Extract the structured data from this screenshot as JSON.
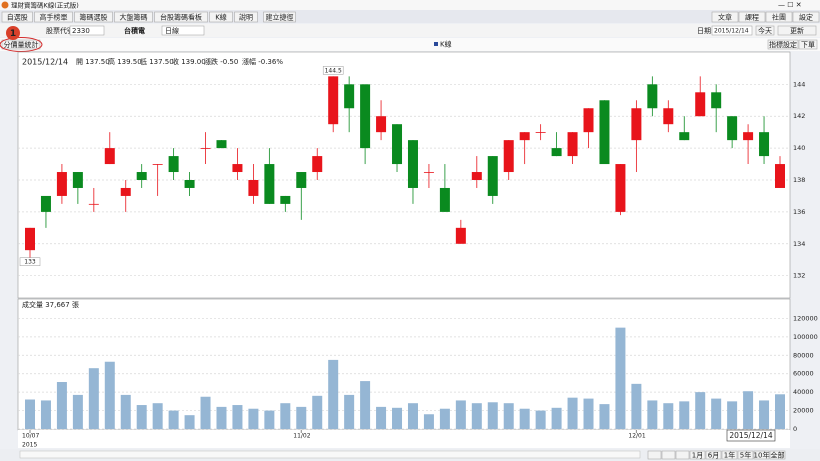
{
  "window_title": "理財寶籌碼K線(正式版)",
  "menu": {
    "tabs": [
      "自選股",
      "高手榜單",
      "籌碼選股",
      "大盤籌碼",
      "台股籌碼看板",
      "K線",
      "說明"
    ],
    "shortcut": "建立捷徑",
    "right": [
      "文章",
      "課程",
      "社團",
      "設定"
    ]
  },
  "toolbar": {
    "code_label": "股票代號",
    "code": "2330",
    "name": "台積電",
    "period": "日線",
    "date_label": "日期:",
    "date": "2015/12/14",
    "today": "今天",
    "refresh": "更新"
  },
  "subbar": {
    "left": "分價量統計",
    "right": [
      "指標設定",
      "下單"
    ]
  },
  "callout": "1",
  "range_buttons": [
    "1月",
    "6月",
    "1年",
    "5年",
    "10年",
    "全部"
  ],
  "chart_data": [
    {
      "type": "candlestick",
      "legend": "K線",
      "date": "2015/12/14",
      "quote": [
        "開 137.50",
        "高 139.50",
        "低 137.50",
        "收 139.00"
      ],
      "change": "漲跌 -0.50",
      "change_pct": "漲幅 -0.36%",
      "up_color": "#e8141b",
      "down_color": "#0a8a1f",
      "open": [
        133.6,
        137,
        137,
        138.5,
        136.5,
        139,
        137,
        138.5,
        139,
        139.5,
        138,
        140,
        140.5,
        138.5,
        137,
        139,
        137,
        138.5,
        138.5,
        141.5,
        144,
        144,
        141,
        141.5,
        140.5,
        138.5,
        137.5,
        134,
        138,
        139.5,
        138.5,
        140.5,
        141,
        140,
        139.5,
        141,
        143,
        136,
        140.5,
        144,
        141.5,
        141,
        142,
        143.5,
        142,
        140.5,
        141,
        137.5
      ],
      "high": [
        135,
        137,
        139,
        138.5,
        137.5,
        141,
        138,
        139,
        139,
        140,
        138.5,
        141,
        140.5,
        140,
        139,
        140,
        137,
        138.5,
        140,
        144.5,
        144.5,
        144,
        143,
        141.5,
        140.5,
        139,
        139,
        135.5,
        139.5,
        139.5,
        140.5,
        141,
        141.5,
        141,
        141,
        142.5,
        143,
        139,
        143,
        144.5,
        143,
        142,
        144.5,
        144,
        142,
        141.5,
        142,
        139.5
      ],
      "low": [
        133,
        135,
        136.5,
        136.5,
        136,
        139,
        136,
        137.5,
        137,
        138,
        137,
        139,
        140,
        138,
        136.5,
        136.5,
        136,
        135.5,
        138,
        141,
        141,
        139,
        140.5,
        138.5,
        136.5,
        137.5,
        136,
        134,
        137.5,
        136.5,
        138,
        139,
        140.5,
        139.5,
        139,
        140,
        139,
        135.8,
        138.5,
        142,
        141,
        140.5,
        142,
        141,
        140,
        139,
        139,
        137.5
      ],
      "close": [
        135,
        136,
        138.5,
        137.5,
        136.5,
        140,
        137.5,
        138,
        139,
        138.5,
        137.5,
        140,
        140,
        139,
        138,
        136.5,
        136.5,
        137.5,
        139.5,
        144.5,
        142.5,
        140,
        142,
        139,
        137.5,
        138.5,
        136,
        135,
        138.5,
        137,
        140.5,
        141,
        141,
        139.5,
        141,
        142.5,
        139,
        139,
        142.5,
        142.5,
        142.5,
        140.5,
        143.5,
        142.5,
        140.5,
        141,
        139.5,
        139
      ],
      "high_label": 144.5,
      "low_label": 133,
      "ylim": [
        130.6,
        145.4
      ],
      "yticks": [
        132,
        134,
        136,
        138,
        140,
        142,
        144
      ],
      "grid": true
    },
    {
      "type": "bar",
      "title": "成交量 37,667 張",
      "categories": [
        "10/07",
        null,
        null,
        null,
        null,
        null,
        null,
        null,
        null,
        null,
        null,
        null,
        null,
        null,
        null,
        null,
        null,
        "11/02",
        null,
        null,
        null,
        null,
        null,
        null,
        null,
        null,
        null,
        null,
        null,
        null,
        null,
        null,
        null,
        null,
        null,
        null,
        null,
        null,
        "12/01",
        null,
        null,
        null,
        null,
        null,
        null,
        null,
        null,
        null
      ],
      "year": "2015",
      "values": [
        32000,
        31000,
        51000,
        37000,
        66000,
        73000,
        37000,
        26000,
        28000,
        20000,
        15000,
        35000,
        24000,
        26000,
        22000,
        20000,
        28000,
        24000,
        36000,
        75000,
        37000,
        52000,
        24000,
        23000,
        28000,
        16000,
        22000,
        31000,
        28000,
        29000,
        28000,
        22000,
        20000,
        23000,
        34000,
        33000,
        27000,
        110000,
        49000,
        31000,
        28000,
        30000,
        40000,
        33000,
        30000,
        41000,
        31000,
        37667
      ],
      "color": "#95b6d4",
      "ylim": [
        0,
        140000
      ],
      "yticks": [
        0,
        20000,
        40000,
        60000,
        80000,
        100000,
        120000
      ],
      "grid": true,
      "cursor_label": "2015/12/14"
    }
  ]
}
